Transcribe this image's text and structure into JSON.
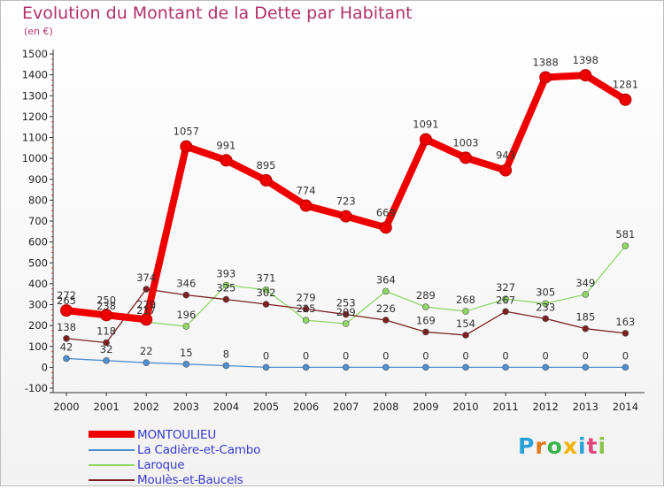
{
  "header": {
    "title": "Evolution du Montant de la Dette par Habitant",
    "subtitle": "(en €)"
  },
  "chart_data": {
    "type": "line",
    "title": "Evolution du Montant de la Dette par Habitant",
    "ylabel": "(en €)",
    "xlabel": "",
    "ylim": [
      -100,
      1500
    ],
    "y_ticks": [
      -100,
      0,
      100,
      200,
      300,
      400,
      500,
      600,
      700,
      800,
      900,
      1000,
      1100,
      1200,
      1300,
      1400,
      1500
    ],
    "grid": false,
    "legend_position": "bottom-left",
    "categories": [
      "2000",
      "2001",
      "2002",
      "2003",
      "2004",
      "2005",
      "2006",
      "2007",
      "2008",
      "2009",
      "2010",
      "2011",
      "2012",
      "2013",
      "2014"
    ],
    "series": [
      {
        "name": "MONTOULIEU",
        "color": "#ee0000",
        "values": [
          272,
          250,
          229,
          1057,
          991,
          895,
          774,
          723,
          669,
          1091,
          1003,
          943,
          1388,
          1398,
          1281
        ],
        "labels": [
          "272",
          "250",
          "229",
          "1057",
          "991",
          "895",
          "774",
          "723",
          "669",
          "1091",
          "1003",
          "943",
          "1388",
          "1398",
          "1281"
        ]
      },
      {
        "name": "La Cadière-et-Cambo",
        "color": "#4f8fd0",
        "values": [
          42,
          32,
          22,
          15,
          8,
          0,
          0,
          0,
          0,
          0,
          0,
          0,
          0,
          0,
          0
        ],
        "labels": [
          "42",
          "32",
          "22",
          "15",
          "8",
          "0",
          "0",
          "0",
          "0",
          "0",
          "0",
          "0",
          "0",
          "0",
          "0"
        ]
      },
      {
        "name": "Laroque",
        "color": "#8fd666",
        "values": [
          265,
          238,
          217,
          196,
          393,
          371,
          225,
          209,
          364,
          289,
          268,
          327,
          305,
          349,
          581
        ],
        "labels": [
          "265",
          "238",
          "217",
          "196",
          "393",
          "371",
          "225",
          "209",
          "364",
          "289",
          "268",
          "327",
          "305",
          "349",
          "581"
        ]
      },
      {
        "name": "Moulès-et-Baucels",
        "color": "#7a2020",
        "values": [
          138,
          118,
          374,
          346,
          325,
          302,
          279,
          253,
          226,
          169,
          154,
          267,
          233,
          185,
          163
        ],
        "labels": [
          "138",
          "118",
          "374",
          "346",
          "325",
          "302",
          "279",
          "253",
          "226",
          "169",
          "154",
          "267",
          "233",
          "185",
          "163"
        ]
      }
    ]
  },
  "legend": {
    "items": [
      {
        "label": "MONTOULIEU",
        "color": "#ee0000"
      },
      {
        "label": "La Cadière-et-Cambo",
        "color": "#4f8fd0"
      },
      {
        "label": "Laroque",
        "color": "#8fd666"
      },
      {
        "label": "Moulès-et-Baucels",
        "color": "#7a2020"
      }
    ]
  },
  "logo": {
    "text": "Proxiti",
    "letters": [
      "P",
      "r",
      "o",
      "x",
      "i",
      "t",
      "i"
    ],
    "colors": [
      "#2aa0d8",
      "#e07b1a",
      "#3ab34a",
      "#f2b400",
      "#2aa0d8",
      "#e0467a",
      "#8bc34a"
    ]
  }
}
